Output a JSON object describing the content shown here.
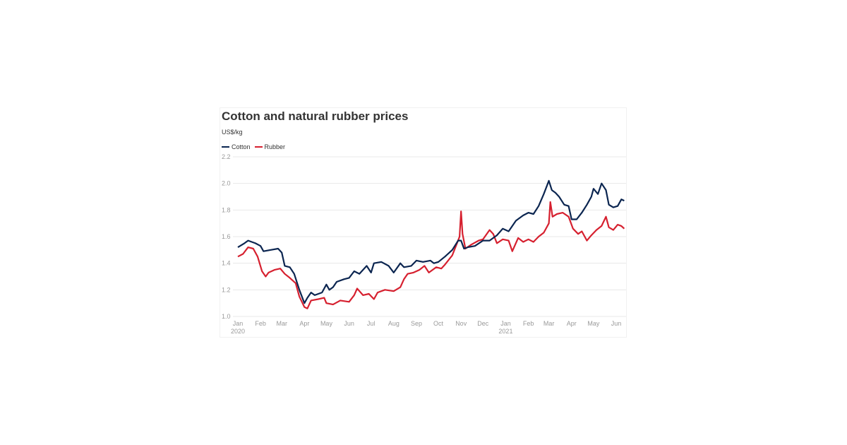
{
  "chart_data": {
    "type": "line",
    "title": "Cotton and natural rubber prices",
    "ylabel": "US$/kg",
    "ylim": [
      1.0,
      2.2
    ],
    "yticks": [
      "1.0",
      "1.2",
      "1.4",
      "1.6",
      "1.8",
      "2.0",
      "2.2"
    ],
    "xticks": [
      {
        "date": "2020-01-01",
        "label": "Jan",
        "sub": "2020"
      },
      {
        "date": "2020-02-01",
        "label": "Feb"
      },
      {
        "date": "2020-03-01",
        "label": "Mar"
      },
      {
        "date": "2020-04-01",
        "label": "Apr"
      },
      {
        "date": "2020-05-01",
        "label": "May"
      },
      {
        "date": "2020-06-01",
        "label": "Jun"
      },
      {
        "date": "2020-07-01",
        "label": "Jul"
      },
      {
        "date": "2020-08-01",
        "label": "Aug"
      },
      {
        "date": "2020-09-01",
        "label": "Sep"
      },
      {
        "date": "2020-10-01",
        "label": "Oct"
      },
      {
        "date": "2020-11-01",
        "label": "Nov"
      },
      {
        "date": "2020-12-01",
        "label": "Dec"
      },
      {
        "date": "2021-01-01",
        "label": "Jan",
        "sub": "2021"
      },
      {
        "date": "2021-02-01",
        "label": "Feb"
      },
      {
        "date": "2021-03-01",
        "label": "Mar"
      },
      {
        "date": "2021-04-01",
        "label": "Apr"
      },
      {
        "date": "2021-05-01",
        "label": "May"
      },
      {
        "date": "2021-06-01",
        "label": "Jun"
      }
    ],
    "grid": true,
    "legend": "top-left",
    "series": [
      {
        "name": "Cotton",
        "color": "#0b2550",
        "points": [
          [
            "2020-01-01",
            1.52
          ],
          [
            "2020-01-10",
            1.55
          ],
          [
            "2020-01-15",
            1.57
          ],
          [
            "2020-01-25",
            1.55
          ],
          [
            "2020-02-01",
            1.53
          ],
          [
            "2020-02-05",
            1.49
          ],
          [
            "2020-02-15",
            1.5
          ],
          [
            "2020-02-25",
            1.51
          ],
          [
            "2020-03-01",
            1.48
          ],
          [
            "2020-03-05",
            1.38
          ],
          [
            "2020-03-12",
            1.37
          ],
          [
            "2020-03-18",
            1.32
          ],
          [
            "2020-03-25",
            1.2
          ],
          [
            "2020-04-01",
            1.1
          ],
          [
            "2020-04-05",
            1.14
          ],
          [
            "2020-04-10",
            1.18
          ],
          [
            "2020-04-15",
            1.16
          ],
          [
            "2020-04-25",
            1.18
          ],
          [
            "2020-05-01",
            1.24
          ],
          [
            "2020-05-05",
            1.2
          ],
          [
            "2020-05-10",
            1.22
          ],
          [
            "2020-05-15",
            1.26
          ],
          [
            "2020-05-25",
            1.28
          ],
          [
            "2020-06-01",
            1.29
          ],
          [
            "2020-06-08",
            1.34
          ],
          [
            "2020-06-15",
            1.32
          ],
          [
            "2020-06-25",
            1.38
          ],
          [
            "2020-07-01",
            1.33
          ],
          [
            "2020-07-05",
            1.4
          ],
          [
            "2020-07-15",
            1.41
          ],
          [
            "2020-07-25",
            1.38
          ],
          [
            "2020-08-01",
            1.33
          ],
          [
            "2020-08-10",
            1.4
          ],
          [
            "2020-08-15",
            1.37
          ],
          [
            "2020-08-25",
            1.38
          ],
          [
            "2020-09-01",
            1.42
          ],
          [
            "2020-09-10",
            1.41
          ],
          [
            "2020-09-20",
            1.42
          ],
          [
            "2020-09-25",
            1.4
          ],
          [
            "2020-10-01",
            1.41
          ],
          [
            "2020-10-10",
            1.45
          ],
          [
            "2020-10-20",
            1.5
          ],
          [
            "2020-10-28",
            1.57
          ],
          [
            "2020-11-01",
            1.57
          ],
          [
            "2020-11-05",
            1.51
          ],
          [
            "2020-11-10",
            1.52
          ],
          [
            "2020-11-20",
            1.53
          ],
          [
            "2020-12-01",
            1.57
          ],
          [
            "2020-12-10",
            1.57
          ],
          [
            "2020-12-20",
            1.61
          ],
          [
            "2020-12-28",
            1.66
          ],
          [
            "2021-01-05",
            1.64
          ],
          [
            "2021-01-15",
            1.72
          ],
          [
            "2021-01-25",
            1.76
          ],
          [
            "2021-02-01",
            1.78
          ],
          [
            "2021-02-08",
            1.77
          ],
          [
            "2021-02-15",
            1.83
          ],
          [
            "2021-02-22",
            1.92
          ],
          [
            "2021-03-01",
            2.02
          ],
          [
            "2021-03-05",
            1.95
          ],
          [
            "2021-03-10",
            1.93
          ],
          [
            "2021-03-15",
            1.9
          ],
          [
            "2021-03-22",
            1.84
          ],
          [
            "2021-03-28",
            1.83
          ],
          [
            "2021-04-01",
            1.73
          ],
          [
            "2021-04-08",
            1.73
          ],
          [
            "2021-04-15",
            1.78
          ],
          [
            "2021-04-22",
            1.84
          ],
          [
            "2021-04-28",
            1.9
          ],
          [
            "2021-05-01",
            1.96
          ],
          [
            "2021-05-07",
            1.92
          ],
          [
            "2021-05-12",
            2.0
          ],
          [
            "2021-05-18",
            1.95
          ],
          [
            "2021-05-22",
            1.84
          ],
          [
            "2021-05-28",
            1.82
          ],
          [
            "2021-06-03",
            1.83
          ],
          [
            "2021-06-08",
            1.88
          ],
          [
            "2021-06-12",
            1.87
          ]
        ]
      },
      {
        "name": "Rubber",
        "color": "#d6202f",
        "points": [
          [
            "2020-01-01",
            1.45
          ],
          [
            "2020-01-08",
            1.47
          ],
          [
            "2020-01-15",
            1.52
          ],
          [
            "2020-01-22",
            1.51
          ],
          [
            "2020-01-28",
            1.45
          ],
          [
            "2020-02-03",
            1.34
          ],
          [
            "2020-02-08",
            1.3
          ],
          [
            "2020-02-12",
            1.33
          ],
          [
            "2020-02-20",
            1.35
          ],
          [
            "2020-02-28",
            1.36
          ],
          [
            "2020-03-05",
            1.32
          ],
          [
            "2020-03-12",
            1.29
          ],
          [
            "2020-03-20",
            1.25
          ],
          [
            "2020-03-25",
            1.15
          ],
          [
            "2020-04-01",
            1.07
          ],
          [
            "2020-04-05",
            1.06
          ],
          [
            "2020-04-10",
            1.12
          ],
          [
            "2020-04-20",
            1.13
          ],
          [
            "2020-04-28",
            1.14
          ],
          [
            "2020-05-01",
            1.1
          ],
          [
            "2020-05-10",
            1.09
          ],
          [
            "2020-05-20",
            1.12
          ],
          [
            "2020-06-01",
            1.11
          ],
          [
            "2020-06-08",
            1.16
          ],
          [
            "2020-06-12",
            1.21
          ],
          [
            "2020-06-20",
            1.16
          ],
          [
            "2020-06-28",
            1.17
          ],
          [
            "2020-07-05",
            1.13
          ],
          [
            "2020-07-10",
            1.18
          ],
          [
            "2020-07-20",
            1.2
          ],
          [
            "2020-08-01",
            1.19
          ],
          [
            "2020-08-10",
            1.22
          ],
          [
            "2020-08-15",
            1.28
          ],
          [
            "2020-08-20",
            1.32
          ],
          [
            "2020-08-28",
            1.33
          ],
          [
            "2020-09-05",
            1.35
          ],
          [
            "2020-09-12",
            1.38
          ],
          [
            "2020-09-18",
            1.33
          ],
          [
            "2020-09-28",
            1.37
          ],
          [
            "2020-10-05",
            1.36
          ],
          [
            "2020-10-10",
            1.39
          ],
          [
            "2020-10-20",
            1.46
          ],
          [
            "2020-10-25",
            1.53
          ],
          [
            "2020-10-30",
            1.6
          ],
          [
            "2020-11-01",
            1.79
          ],
          [
            "2020-11-03",
            1.62
          ],
          [
            "2020-11-07",
            1.51
          ],
          [
            "2020-11-15",
            1.54
          ],
          [
            "2020-11-25",
            1.57
          ],
          [
            "2020-12-01",
            1.58
          ],
          [
            "2020-12-10",
            1.65
          ],
          [
            "2020-12-15",
            1.62
          ],
          [
            "2020-12-20",
            1.55
          ],
          [
            "2020-12-28",
            1.58
          ],
          [
            "2021-01-05",
            1.57
          ],
          [
            "2021-01-10",
            1.49
          ],
          [
            "2021-01-18",
            1.59
          ],
          [
            "2021-01-25",
            1.56
          ],
          [
            "2021-02-01",
            1.58
          ],
          [
            "2021-02-08",
            1.56
          ],
          [
            "2021-02-15",
            1.6
          ],
          [
            "2021-02-22",
            1.63
          ],
          [
            "2021-03-01",
            1.7
          ],
          [
            "2021-03-03",
            1.86
          ],
          [
            "2021-03-06",
            1.75
          ],
          [
            "2021-03-12",
            1.77
          ],
          [
            "2021-03-20",
            1.78
          ],
          [
            "2021-03-28",
            1.75
          ],
          [
            "2021-04-03",
            1.66
          ],
          [
            "2021-04-10",
            1.62
          ],
          [
            "2021-04-15",
            1.64
          ],
          [
            "2021-04-22",
            1.57
          ],
          [
            "2021-04-28",
            1.61
          ],
          [
            "2021-05-05",
            1.65
          ],
          [
            "2021-05-12",
            1.68
          ],
          [
            "2021-05-18",
            1.75
          ],
          [
            "2021-05-22",
            1.67
          ],
          [
            "2021-05-28",
            1.65
          ],
          [
            "2021-06-03",
            1.69
          ],
          [
            "2021-06-08",
            1.68
          ],
          [
            "2021-06-12",
            1.66
          ]
        ]
      }
    ]
  }
}
